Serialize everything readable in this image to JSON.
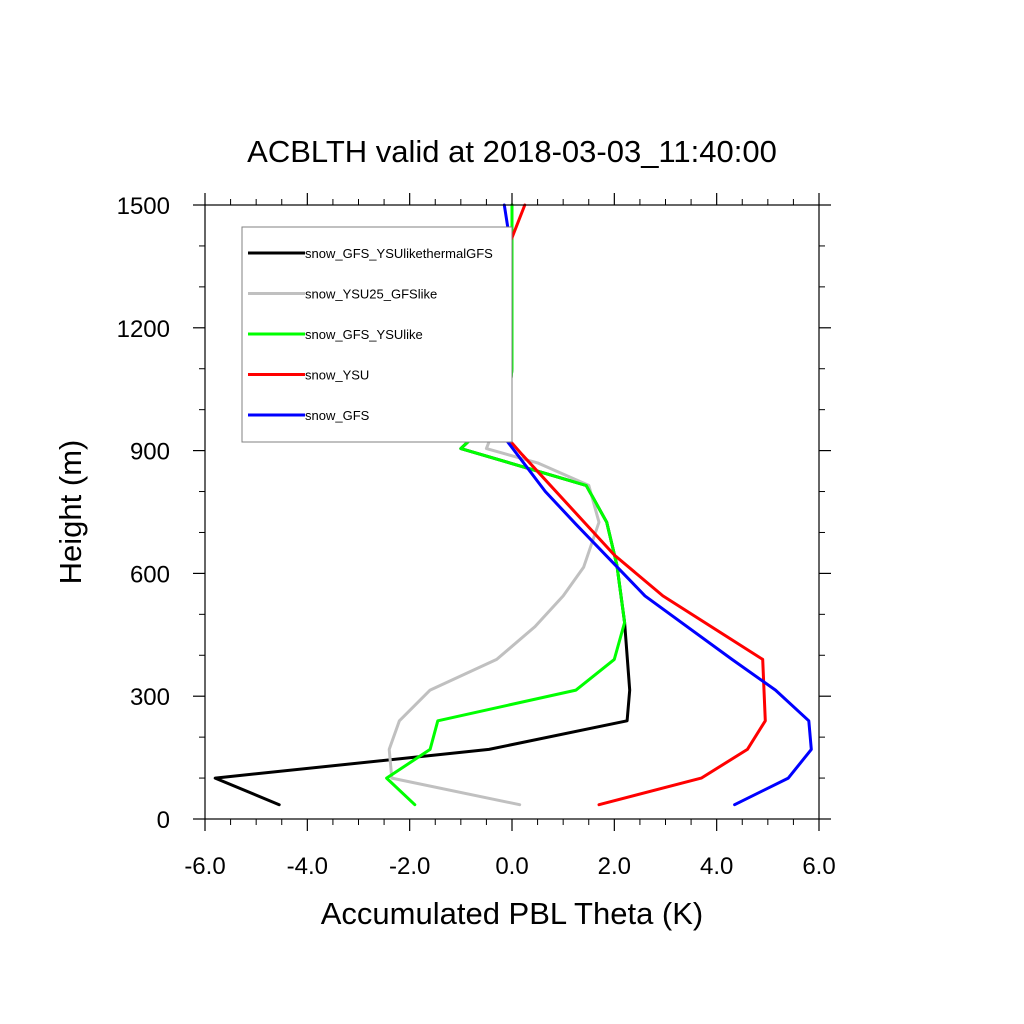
{
  "chart_data": {
    "type": "line",
    "title": "ACBLTH valid at 2018-03-03_11:40:00",
    "xlabel": "Accumulated PBL Theta (K)",
    "ylabel": "Height (m)",
    "xlim": [
      -6.0,
      6.0
    ],
    "ylim": [
      0,
      1500
    ],
    "x_ticks": [
      -6.0,
      -4.0,
      -2.0,
      0.0,
      2.0,
      4.0,
      6.0
    ],
    "x_tick_labels": [
      "-6.0",
      "-4.0",
      "-2.0",
      "0.0",
      "2.0",
      "4.0",
      "6.0"
    ],
    "y_ticks": [
      0,
      300,
      600,
      900,
      1200,
      1500
    ],
    "y_tick_labels": [
      "0",
      "300",
      "600",
      "900",
      "1200",
      "1500"
    ],
    "grid": false,
    "legend_position": "top-left",
    "series": [
      {
        "name": "snow_GFS_YSUlikethermalGFS",
        "color": "#000000",
        "points": [
          [
            -4.55,
            35
          ],
          [
            -5.8,
            100
          ],
          [
            -0.45,
            170
          ],
          [
            2.25,
            240
          ],
          [
            2.3,
            315
          ],
          [
            2.2,
            480
          ],
          [
            2.05,
            620
          ],
          [
            1.85,
            725
          ],
          [
            1.45,
            815
          ],
          [
            -1.0,
            905
          ],
          [
            -0.2,
            1000
          ],
          [
            -0.05,
            1040
          ],
          [
            0.0,
            1100
          ],
          [
            0.0,
            1200
          ],
          [
            0.0,
            1300
          ],
          [
            0.0,
            1400
          ],
          [
            0.0,
            1500
          ]
        ]
      },
      {
        "name": "snow_YSU25_GFSlike",
        "color": "#c0c0c0",
        "points": [
          [
            0.15,
            35
          ],
          [
            -2.35,
            100
          ],
          [
            -2.4,
            170
          ],
          [
            -2.2,
            240
          ],
          [
            -1.6,
            315
          ],
          [
            -0.3,
            390
          ],
          [
            0.45,
            470
          ],
          [
            1.0,
            545
          ],
          [
            1.4,
            615
          ],
          [
            1.7,
            725
          ],
          [
            1.5,
            815
          ],
          [
            0.5,
            870
          ],
          [
            -0.5,
            905
          ],
          [
            -0.2,
            1000
          ],
          [
            -0.05,
            1040
          ],
          [
            0.0,
            1100
          ],
          [
            0.0,
            1200
          ],
          [
            0.0,
            1300
          ],
          [
            0.0,
            1400
          ],
          [
            0.0,
            1500
          ]
        ]
      },
      {
        "name": "snow_GFS_YSUlike",
        "color": "#00ff00",
        "points": [
          [
            -1.9,
            35
          ],
          [
            -2.45,
            100
          ],
          [
            -1.6,
            170
          ],
          [
            -1.45,
            240
          ],
          [
            1.25,
            315
          ],
          [
            2.0,
            390
          ],
          [
            2.2,
            480
          ],
          [
            2.05,
            620
          ],
          [
            1.85,
            725
          ],
          [
            1.45,
            815
          ],
          [
            -1.0,
            905
          ],
          [
            -0.2,
            1000
          ],
          [
            -0.05,
            1040
          ],
          [
            0.0,
            1100
          ],
          [
            0.0,
            1200
          ],
          [
            0.0,
            1300
          ],
          [
            0.0,
            1400
          ],
          [
            0.0,
            1500
          ]
        ]
      },
      {
        "name": "snow_YSU",
        "color": "#ff0000",
        "points": [
          [
            1.7,
            35
          ],
          [
            3.7,
            100
          ],
          [
            4.6,
            170
          ],
          [
            4.95,
            240
          ],
          [
            4.9,
            390
          ],
          [
            2.95,
            545
          ],
          [
            2.0,
            645
          ],
          [
            0.2,
            890
          ],
          [
            -0.5,
            990
          ],
          [
            -0.75,
            1085
          ],
          [
            -0.7,
            1200
          ],
          [
            -0.35,
            1320
          ],
          [
            0.0,
            1420
          ],
          [
            0.25,
            1500
          ]
        ]
      },
      {
        "name": "snow_GFS",
        "color": "#0000ff",
        "points": [
          [
            4.35,
            35
          ],
          [
            5.4,
            100
          ],
          [
            5.85,
            170
          ],
          [
            5.8,
            240
          ],
          [
            5.15,
            315
          ],
          [
            4.3,
            390
          ],
          [
            2.6,
            545
          ],
          [
            1.25,
            720
          ],
          [
            0.65,
            800
          ],
          [
            -0.5,
            990
          ],
          [
            -0.75,
            1085
          ],
          [
            -1.35,
            1290
          ],
          [
            -0.05,
            1420
          ],
          [
            -0.15,
            1500
          ]
        ]
      }
    ]
  }
}
